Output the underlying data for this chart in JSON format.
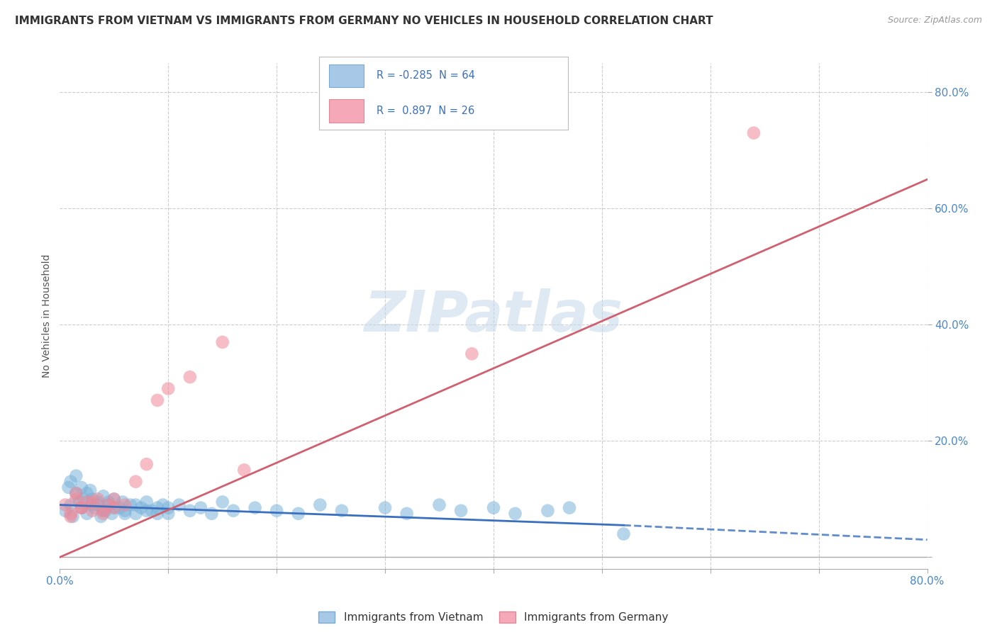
{
  "title": "IMMIGRANTS FROM VIETNAM VS IMMIGRANTS FROM GERMANY NO VEHICLES IN HOUSEHOLD CORRELATION CHART",
  "source": "Source: ZipAtlas.com",
  "ylabel": "No Vehicles in Household",
  "series1_label": "Immigrants from Vietnam",
  "series2_label": "Immigrants from Germany",
  "series1_color": "#7ab3d9",
  "series2_color": "#f08898",
  "series1_line_color": "#3a6fc0",
  "series2_line_color": "#d06070",
  "watermark_text": "ZIPatlas",
  "background_color": "#ffffff",
  "grid_color": "#cccccc",
  "series1_R": -0.285,
  "series1_N": 64,
  "series2_R": 0.897,
  "series2_N": 26,
  "xlim": [
    0.0,
    0.8
  ],
  "ylim": [
    -0.02,
    0.85
  ],
  "ytick_positions": [
    0.0,
    0.2,
    0.4,
    0.6,
    0.8
  ],
  "ytick_labels": [
    "",
    "20.0%",
    "40.0%",
    "60.0%",
    "80.0%"
  ],
  "xtick_positions": [
    0.0,
    0.1,
    0.2,
    0.3,
    0.4,
    0.5,
    0.6,
    0.7,
    0.8
  ],
  "title_fontsize": 11,
  "tick_fontsize": 11,
  "tick_color": "#4a86c8",
  "vietnam_x": [
    0.005,
    0.008,
    0.01,
    0.012,
    0.015,
    0.018,
    0.02,
    0.022,
    0.025,
    0.028,
    0.03,
    0.032,
    0.035,
    0.038,
    0.04,
    0.042,
    0.045,
    0.048,
    0.05,
    0.055,
    0.058,
    0.06,
    0.065,
    0.07,
    0.075,
    0.08,
    0.085,
    0.09,
    0.095,
    0.1,
    0.01,
    0.015,
    0.02,
    0.025,
    0.03,
    0.035,
    0.04,
    0.045,
    0.05,
    0.06,
    0.07,
    0.08,
    0.09,
    0.1,
    0.11,
    0.12,
    0.13,
    0.14,
    0.15,
    0.16,
    0.18,
    0.2,
    0.22,
    0.24,
    0.26,
    0.3,
    0.32,
    0.35,
    0.37,
    0.4,
    0.42,
    0.45,
    0.47,
    0.52
  ],
  "vietnam_y": [
    0.08,
    0.12,
    0.09,
    0.07,
    0.11,
    0.095,
    0.085,
    0.1,
    0.075,
    0.115,
    0.09,
    0.085,
    0.095,
    0.07,
    0.105,
    0.08,
    0.09,
    0.075,
    0.1,
    0.085,
    0.095,
    0.08,
    0.09,
    0.075,
    0.085,
    0.095,
    0.08,
    0.075,
    0.09,
    0.085,
    0.13,
    0.14,
    0.12,
    0.11,
    0.1,
    0.09,
    0.08,
    0.095,
    0.085,
    0.075,
    0.09,
    0.08,
    0.085,
    0.075,
    0.09,
    0.08,
    0.085,
    0.075,
    0.095,
    0.08,
    0.085,
    0.08,
    0.075,
    0.09,
    0.08,
    0.085,
    0.075,
    0.09,
    0.08,
    0.085,
    0.075,
    0.08,
    0.085,
    0.04
  ],
  "germany_x": [
    0.005,
    0.01,
    0.015,
    0.02,
    0.025,
    0.03,
    0.035,
    0.04,
    0.045,
    0.05,
    0.01,
    0.015,
    0.02,
    0.03,
    0.04,
    0.05,
    0.06,
    0.07,
    0.08,
    0.09,
    0.1,
    0.12,
    0.15,
    0.17,
    0.38,
    0.64
  ],
  "germany_y": [
    0.09,
    0.07,
    0.11,
    0.085,
    0.095,
    0.08,
    0.1,
    0.075,
    0.09,
    0.085,
    0.075,
    0.1,
    0.085,
    0.095,
    0.08,
    0.1,
    0.09,
    0.13,
    0.16,
    0.27,
    0.29,
    0.31,
    0.37,
    0.15,
    0.35,
    0.73
  ],
  "line1_x_start": 0.0,
  "line1_x_end_solid": 0.52,
  "line1_x_end_dash": 0.8,
  "line1_y_start": 0.09,
  "line1_y_end_solid": 0.055,
  "line1_y_end_dash": 0.03,
  "line2_x_start": 0.0,
  "line2_x_end": 0.8,
  "line2_y_start": 0.0,
  "line2_y_end": 0.65
}
